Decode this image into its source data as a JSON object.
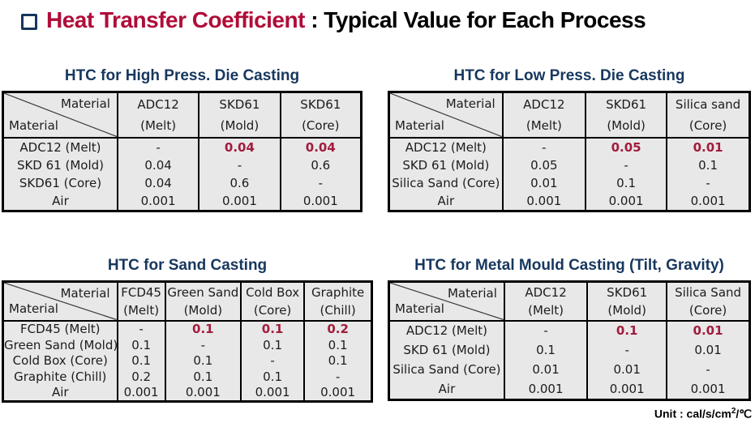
{
  "title": {
    "bullet_icon": "square-outline-icon",
    "highlight": "Heat Transfer Coefficient",
    "rest": " : Typical Value for Each Process"
  },
  "colors": {
    "title_red": "#B00D38",
    "value_red": "#A21C3C",
    "heading_navy": "#17375E",
    "table_bg": "#E8E8E8",
    "border": "#000000"
  },
  "unit_note": {
    "prefix": "Unit : cal/s/cm",
    "sup": "2",
    "suffix": "/℃"
  },
  "tables": [
    {
      "title": "HTC for High Press. Die Casting",
      "corner": {
        "top": "Material",
        "bottom": "Material"
      },
      "col_widths": [
        "32%",
        "22.7%",
        "22.7%",
        "22.6%"
      ],
      "columns": [
        {
          "line1": "ADC12",
          "line2": "(Melt)"
        },
        {
          "line1": "SKD61",
          "line2": "(Mold)"
        },
        {
          "line1": "SKD61",
          "line2": "(Core)"
        }
      ],
      "rows": [
        {
          "label": "ADC12 (Melt)",
          "values": [
            "-",
            "0.04",
            "0.04"
          ],
          "hl": [
            1,
            2
          ]
        },
        {
          "label": "SKD 61 (Mold)",
          "values": [
            "0.04",
            "-",
            "0.6"
          ],
          "hl": []
        },
        {
          "label": "SKD61 (Core)",
          "values": [
            "0.04",
            "0.6",
            "-"
          ],
          "hl": []
        },
        {
          "label": "Air",
          "values": [
            "0.001",
            "0.001",
            "0.001"
          ],
          "hl": []
        }
      ]
    },
    {
      "title": "HTC for Low Press. Die Casting",
      "corner": {
        "top": "Material",
        "bottom": "Material"
      },
      "col_widths": [
        "31.5%",
        "23%",
        "22.5%",
        "23%"
      ],
      "columns": [
        {
          "line1": "ADC12",
          "line2": "(Melt)"
        },
        {
          "line1": "SKD61",
          "line2": "(Mold)"
        },
        {
          "line1": "Silica sand",
          "line2": "(Core)"
        }
      ],
      "rows": [
        {
          "label": "ADC12 (Melt)",
          "values": [
            "-",
            "0.05",
            "0.01"
          ],
          "hl": [
            1,
            2
          ]
        },
        {
          "label": "SKD 61 (Mold)",
          "values": [
            "0.05",
            "-",
            "0.1"
          ],
          "hl": []
        },
        {
          "label": "Silica Sand (Core)",
          "values": [
            "0.01",
            "0.1",
            "-"
          ],
          "hl": []
        },
        {
          "label": "Air",
          "values": [
            "0.001",
            "0.001",
            "0.001"
          ],
          "hl": []
        }
      ]
    },
    {
      "title": "HTC for Sand Casting",
      "corner": {
        "top": "Material",
        "bottom": "Material"
      },
      "col_widths": [
        "31%",
        "13%",
        "20.5%",
        "17.2%",
        "18.3%"
      ],
      "columns": [
        {
          "line1": "FCD45",
          "line2": "(Melt)"
        },
        {
          "line1": "Green Sand",
          "line2": "(Mold)"
        },
        {
          "line1": "Cold Box",
          "line2": "(Core)"
        },
        {
          "line1": "Graphite",
          "line2": "(Chill)"
        }
      ],
      "rows": [
        {
          "label": "FCD45 (Melt)",
          "values": [
            "-",
            "0.1",
            "0.1",
            "0.2"
          ],
          "hl": [
            1,
            2,
            3
          ]
        },
        {
          "label": "Green Sand (Mold)",
          "values": [
            "0.1",
            "-",
            "0.1",
            "0.1"
          ],
          "hl": []
        },
        {
          "label": "Cold Box (Core)",
          "values": [
            "0.1",
            "0.1",
            "-",
            "0.1"
          ],
          "hl": []
        },
        {
          "label": "Graphite (Chill)",
          "values": [
            "0.2",
            "0.1",
            "0.1",
            "-"
          ],
          "hl": []
        },
        {
          "label": "Air",
          "values": [
            "0.001",
            "0.001",
            "0.001",
            "0.001"
          ],
          "hl": []
        }
      ]
    },
    {
      "title": "HTC for Metal Mould Casting (Tilt, Gravity)",
      "corner": {
        "top": "Material",
        "bottom": "Material"
      },
      "col_widths": [
        "32%",
        "23%",
        "22%",
        "23%"
      ],
      "columns": [
        {
          "line1": "ADC12",
          "line2": "(Melt)"
        },
        {
          "line1": "SKD61",
          "line2": "(Mold)"
        },
        {
          "line1": "Silica Sand",
          "line2": "(Core)"
        }
      ],
      "rows": [
        {
          "label": "ADC12 (Melt)",
          "values": [
            "-",
            "0.1",
            "0.01"
          ],
          "hl": [
            1,
            2
          ]
        },
        {
          "label": "SKD 61 (Mold)",
          "values": [
            "0.1",
            "-",
            "0.01"
          ],
          "hl": []
        },
        {
          "label": "Silica Sand (Core)",
          "values": [
            "0.01",
            "0.01",
            "-"
          ],
          "hl": []
        },
        {
          "label": "Air",
          "values": [
            "0.001",
            "0.001",
            "0.001"
          ],
          "hl": []
        }
      ]
    }
  ]
}
